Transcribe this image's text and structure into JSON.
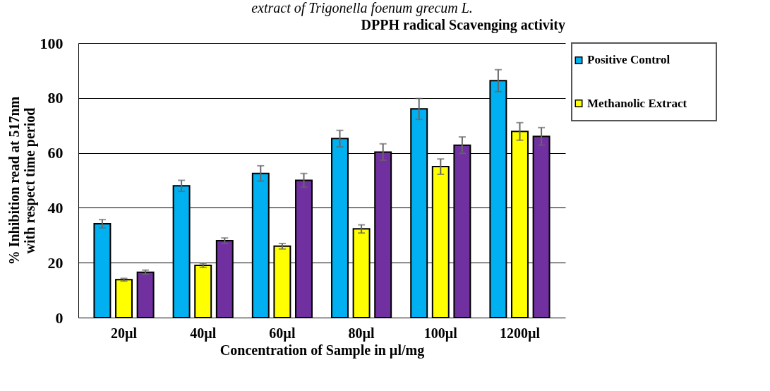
{
  "chart_data": {
    "type": "bar",
    "title": "DPPH radical Scavenging activity",
    "xlabel": "Concentration of Sample in µl/mg",
    "ylabel": "% Inhibition read at 517nm\nwith respect time period",
    "annotations": [
      "extract of Trigonella foenum grecum L."
    ],
    "categories": [
      "20µl",
      "40µl",
      "60µl",
      "80µl",
      "100µl",
      "1200µl"
    ],
    "series": [
      {
        "name": "Positive Control",
        "color": "#00b0f0",
        "values": [
          34.2,
          48,
          52.5,
          65.2,
          76,
          86.3
        ],
        "errors": [
          1.5,
          2,
          2.8,
          3,
          3.8,
          4
        ]
      },
      {
        "name": "Methanolic Extract",
        "color": "#ffff00",
        "values": [
          13.8,
          19,
          26,
          32.3,
          55,
          67.8
        ],
        "errors": [
          0.5,
          0.7,
          1,
          1.5,
          2.8,
          3.2
        ]
      },
      {
        "color": "#7030a0",
        "values": [
          16.5,
          28,
          50,
          60.3,
          62.8,
          66
        ],
        "errors": [
          0.8,
          1,
          2.5,
          3,
          3,
          3.2
        ]
      }
    ],
    "ylim": [
      0,
      100
    ],
    "yticks": [
      0,
      20,
      40,
      60,
      80,
      100
    ],
    "grid": "y",
    "legend": "right"
  }
}
